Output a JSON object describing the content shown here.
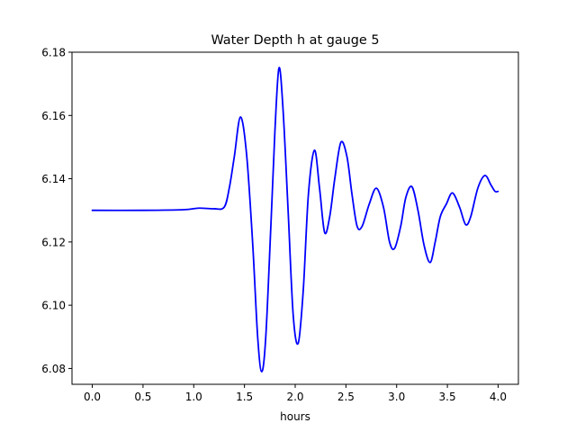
{
  "chart_data": {
    "type": "line",
    "title": "Water Depth h at gauge 5",
    "xlabel": "hours",
    "ylabel": "",
    "xlim": [
      -0.2,
      4.2
    ],
    "ylim": [
      6.075,
      6.18
    ],
    "xticks": [
      "0.0",
      "0.5",
      "1.0",
      "1.5",
      "2.0",
      "2.5",
      "3.0",
      "3.5",
      "4.0"
    ],
    "yticks": [
      "6.08",
      "6.10",
      "6.12",
      "6.14",
      "6.16",
      "6.18"
    ],
    "grid": false,
    "legend": "none",
    "series": [
      {
        "color": "#0000ff",
        "x": [
          0.0,
          0.5,
          0.9,
          1.05,
          1.2,
          1.3,
          1.35,
          1.4,
          1.46,
          1.52,
          1.58,
          1.63,
          1.67,
          1.71,
          1.76,
          1.8,
          1.84,
          1.88,
          1.93,
          1.98,
          2.03,
          2.08,
          2.13,
          2.19,
          2.24,
          2.29,
          2.34,
          2.39,
          2.45,
          2.51,
          2.56,
          2.61,
          2.66,
          2.73,
          2.8,
          2.87,
          2.93,
          2.98,
          3.04,
          3.09,
          3.15,
          3.21,
          3.27,
          3.33,
          3.38,
          3.43,
          3.49,
          3.55,
          3.62,
          3.68,
          3.73,
          3.8,
          3.87,
          3.93,
          3.97,
          4.0
        ],
        "y": [
          6.13,
          6.13,
          6.1302,
          6.1307,
          6.1305,
          6.131,
          6.137,
          6.147,
          6.1595,
          6.148,
          6.12,
          6.09,
          6.079,
          6.09,
          6.125,
          6.155,
          6.175,
          6.162,
          6.13,
          6.097,
          6.088,
          6.105,
          6.135,
          6.149,
          6.137,
          6.123,
          6.128,
          6.14,
          6.1515,
          6.147,
          6.135,
          6.125,
          6.125,
          6.132,
          6.137,
          6.131,
          6.12,
          6.118,
          6.125,
          6.134,
          6.1375,
          6.13,
          6.119,
          6.1135,
          6.12,
          6.128,
          6.132,
          6.1355,
          6.131,
          6.1255,
          6.128,
          6.137,
          6.141,
          6.138,
          6.136,
          6.136
        ]
      }
    ]
  }
}
